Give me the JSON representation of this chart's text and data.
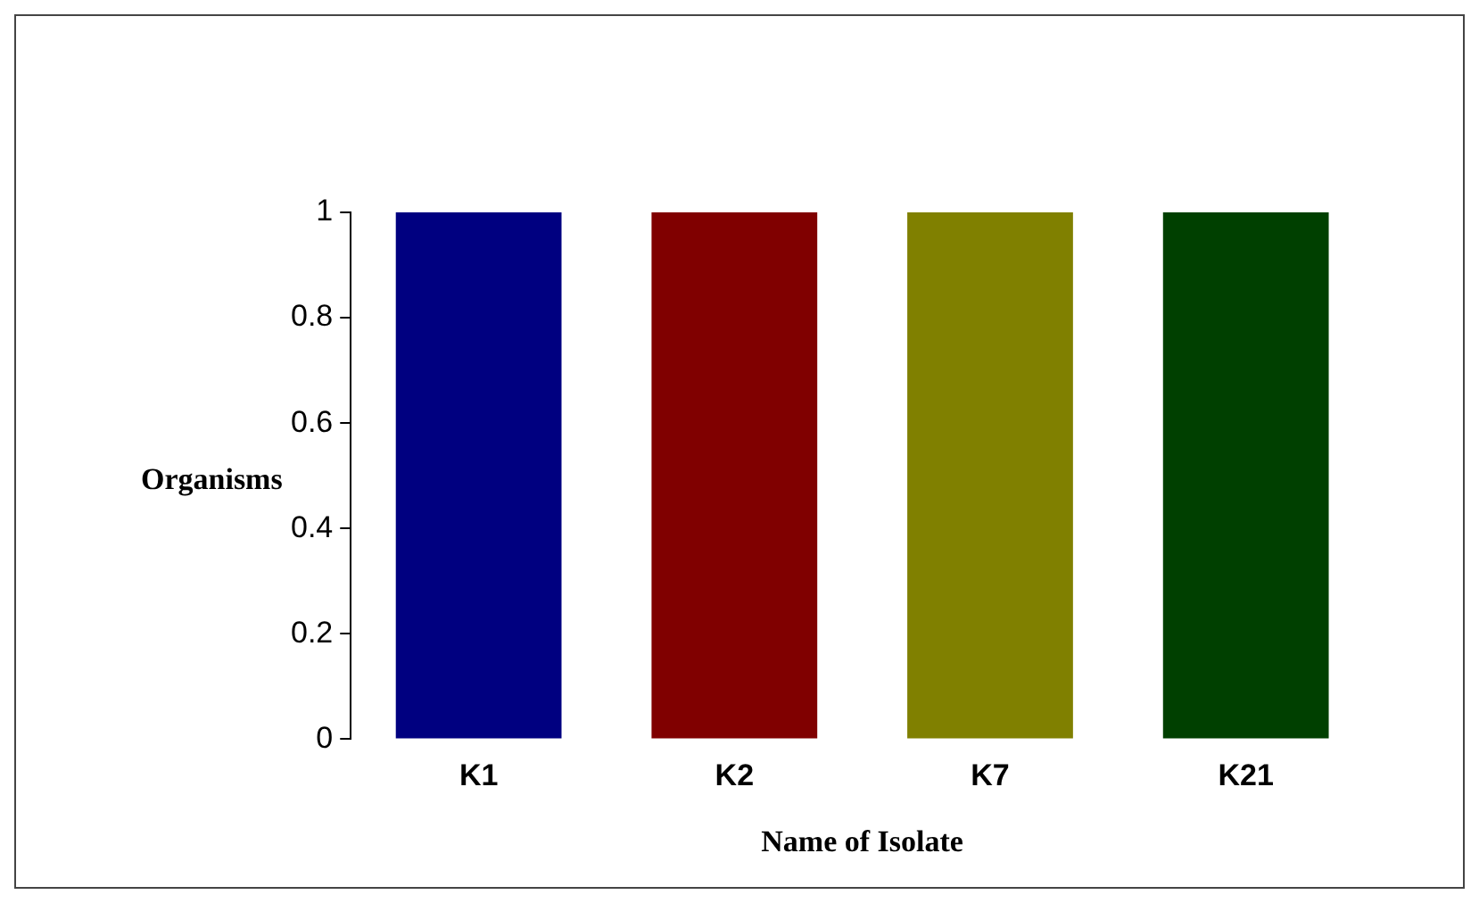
{
  "chart_data": {
    "type": "bar",
    "xlabel": "Name of Isolate",
    "ylabel": "Organisms",
    "categories": [
      "K1",
      "K2",
      "K7",
      "K21"
    ],
    "values": [
      1,
      1,
      1,
      1
    ],
    "colors": [
      "#000080",
      "#800000",
      "#808000",
      "#004000"
    ],
    "ylim": [
      0,
      1
    ],
    "yticks": [
      0,
      0.2,
      0.4,
      0.6,
      0.8,
      1
    ],
    "grid": false,
    "legend": false
  }
}
